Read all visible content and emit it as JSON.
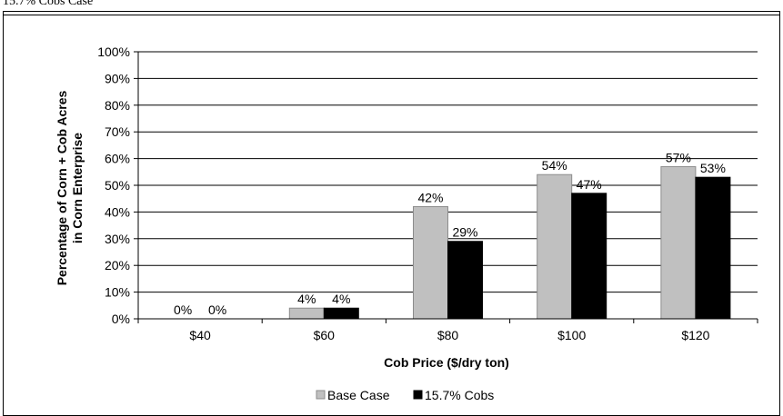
{
  "caption": "15.7% Cobs Case",
  "chart_data": {
    "type": "bar",
    "title": "",
    "xlabel": "Cob Price ($/dry ton)",
    "ylabel_line1": "Percentage of Corn + Cob Acres",
    "ylabel_line2": "in Corn Enterprise",
    "categories": [
      "$40",
      "$60",
      "$80",
      "$100",
      "$120"
    ],
    "ylim": [
      0,
      100
    ],
    "yticks": [
      "0%",
      "10%",
      "20%",
      "30%",
      "40%",
      "50%",
      "60%",
      "70%",
      "80%",
      "90%",
      "100%"
    ],
    "grid": true,
    "legend_position": "bottom",
    "series": [
      {
        "name": "Base Case",
        "values": [
          0,
          4,
          42,
          54,
          57
        ],
        "labels": [
          "0%",
          "4%",
          "42%",
          "54%",
          "57%"
        ],
        "color": "#c0c0c0"
      },
      {
        "name": "15.7% Cobs",
        "values": [
          0,
          4,
          29,
          47,
          53
        ],
        "labels": [
          "0%",
          "4%",
          "29%",
          "47%",
          "53%"
        ],
        "color": "#000000"
      }
    ]
  }
}
